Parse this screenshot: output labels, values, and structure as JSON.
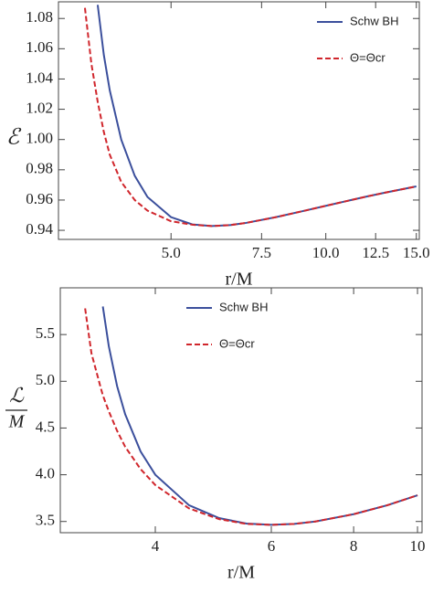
{
  "chart_data": [
    {
      "type": "line",
      "xlabel": "r/M",
      "ylabel": "ℰ",
      "xscale": "log",
      "legend": "upper right",
      "xlim": [
        3.02,
        15.2
      ],
      "ylim": [
        0.934,
        1.091
      ],
      "xticks": [
        {
          "value": 5,
          "label": "5.0"
        },
        7.5,
        {
          "value": 10,
          "label": "10.0"
        },
        12.5,
        {
          "value": 15,
          "label": "15.0"
        }
      ],
      "yticks": [
        0.94,
        0.96,
        0.98,
        {
          "value": 1,
          "label": "1.00"
        },
        1.02,
        1.04,
        1.06,
        1.08
      ],
      "x": [
        3.4,
        3.5,
        3.6,
        3.7,
        3.8,
        4,
        4.25,
        4.5,
        5,
        5.5,
        6,
        6.5,
        7,
        8,
        9,
        10,
        11,
        12,
        13,
        14,
        15
      ],
      "series": [
        {
          "name": "Schw BH",
          "color": "#3b4f9c",
          "dash": false,
          "values": [
            null,
            null,
            1.089,
            1.056,
            1.0325,
            1.0,
            0.976,
            0.962,
            0.9487,
            0.9439,
            0.9428,
            0.9434,
            0.9449,
            0.9487,
            0.9526,
            0.9562,
            0.9594,
            0.9623,
            0.9648,
            0.967,
            0.969
          ]
        },
        {
          "name": "Θ=Θcr",
          "color": "#d0262c",
          "dash": true,
          "values": [
            1.087,
            1.05,
            1.025,
            1.005,
            0.99,
            0.972,
            0.96,
            0.953,
            0.946,
            0.9437,
            0.9428,
            0.9434,
            0.9449,
            0.9487,
            0.9526,
            0.9562,
            0.9594,
            0.9623,
            0.9648,
            0.967,
            0.969
          ]
        }
      ]
    },
    {
      "type": "line",
      "xlabel": "r/M",
      "ylabel": [
        "ℒ",
        "M"
      ],
      "xscale": "log",
      "legend": "upper center",
      "xlim": [
        2.87,
        10.16
      ],
      "ylim": [
        3.38,
        6.0
      ],
      "xticks": [
        4,
        6,
        8,
        10
      ],
      "yticks": [
        3.5,
        {
          "value": 4,
          "label": "4.0"
        },
        4.5,
        {
          "value": 5,
          "label": "5.0"
        },
        5.5
      ],
      "x": [
        3.13,
        3.2,
        3.3,
        3.33,
        3.4,
        3.5,
        3.6,
        3.8,
        4,
        4.5,
        5,
        5.5,
        6,
        6.5,
        7,
        8,
        9,
        10
      ],
      "series": [
        {
          "name": "Schw BH",
          "color": "#3b4f9c",
          "dash": false,
          "values": [
            null,
            null,
            null,
            5.8,
            5.376,
            4.949,
            4.648,
            4.249,
            4.0,
            3.674,
            3.536,
            3.478,
            3.464,
            3.474,
            3.5,
            3.578,
            3.674,
            3.78
          ]
        },
        {
          "name": "Θ=Θcr",
          "color": "#d0262c",
          "dash": true,
          "values": [
            5.78,
            5.3,
            4.95,
            4.85,
            4.68,
            4.47,
            4.3,
            4.06,
            3.89,
            3.64,
            3.525,
            3.474,
            3.464,
            3.474,
            3.5,
            3.578,
            3.674,
            3.78
          ]
        }
      ]
    }
  ]
}
